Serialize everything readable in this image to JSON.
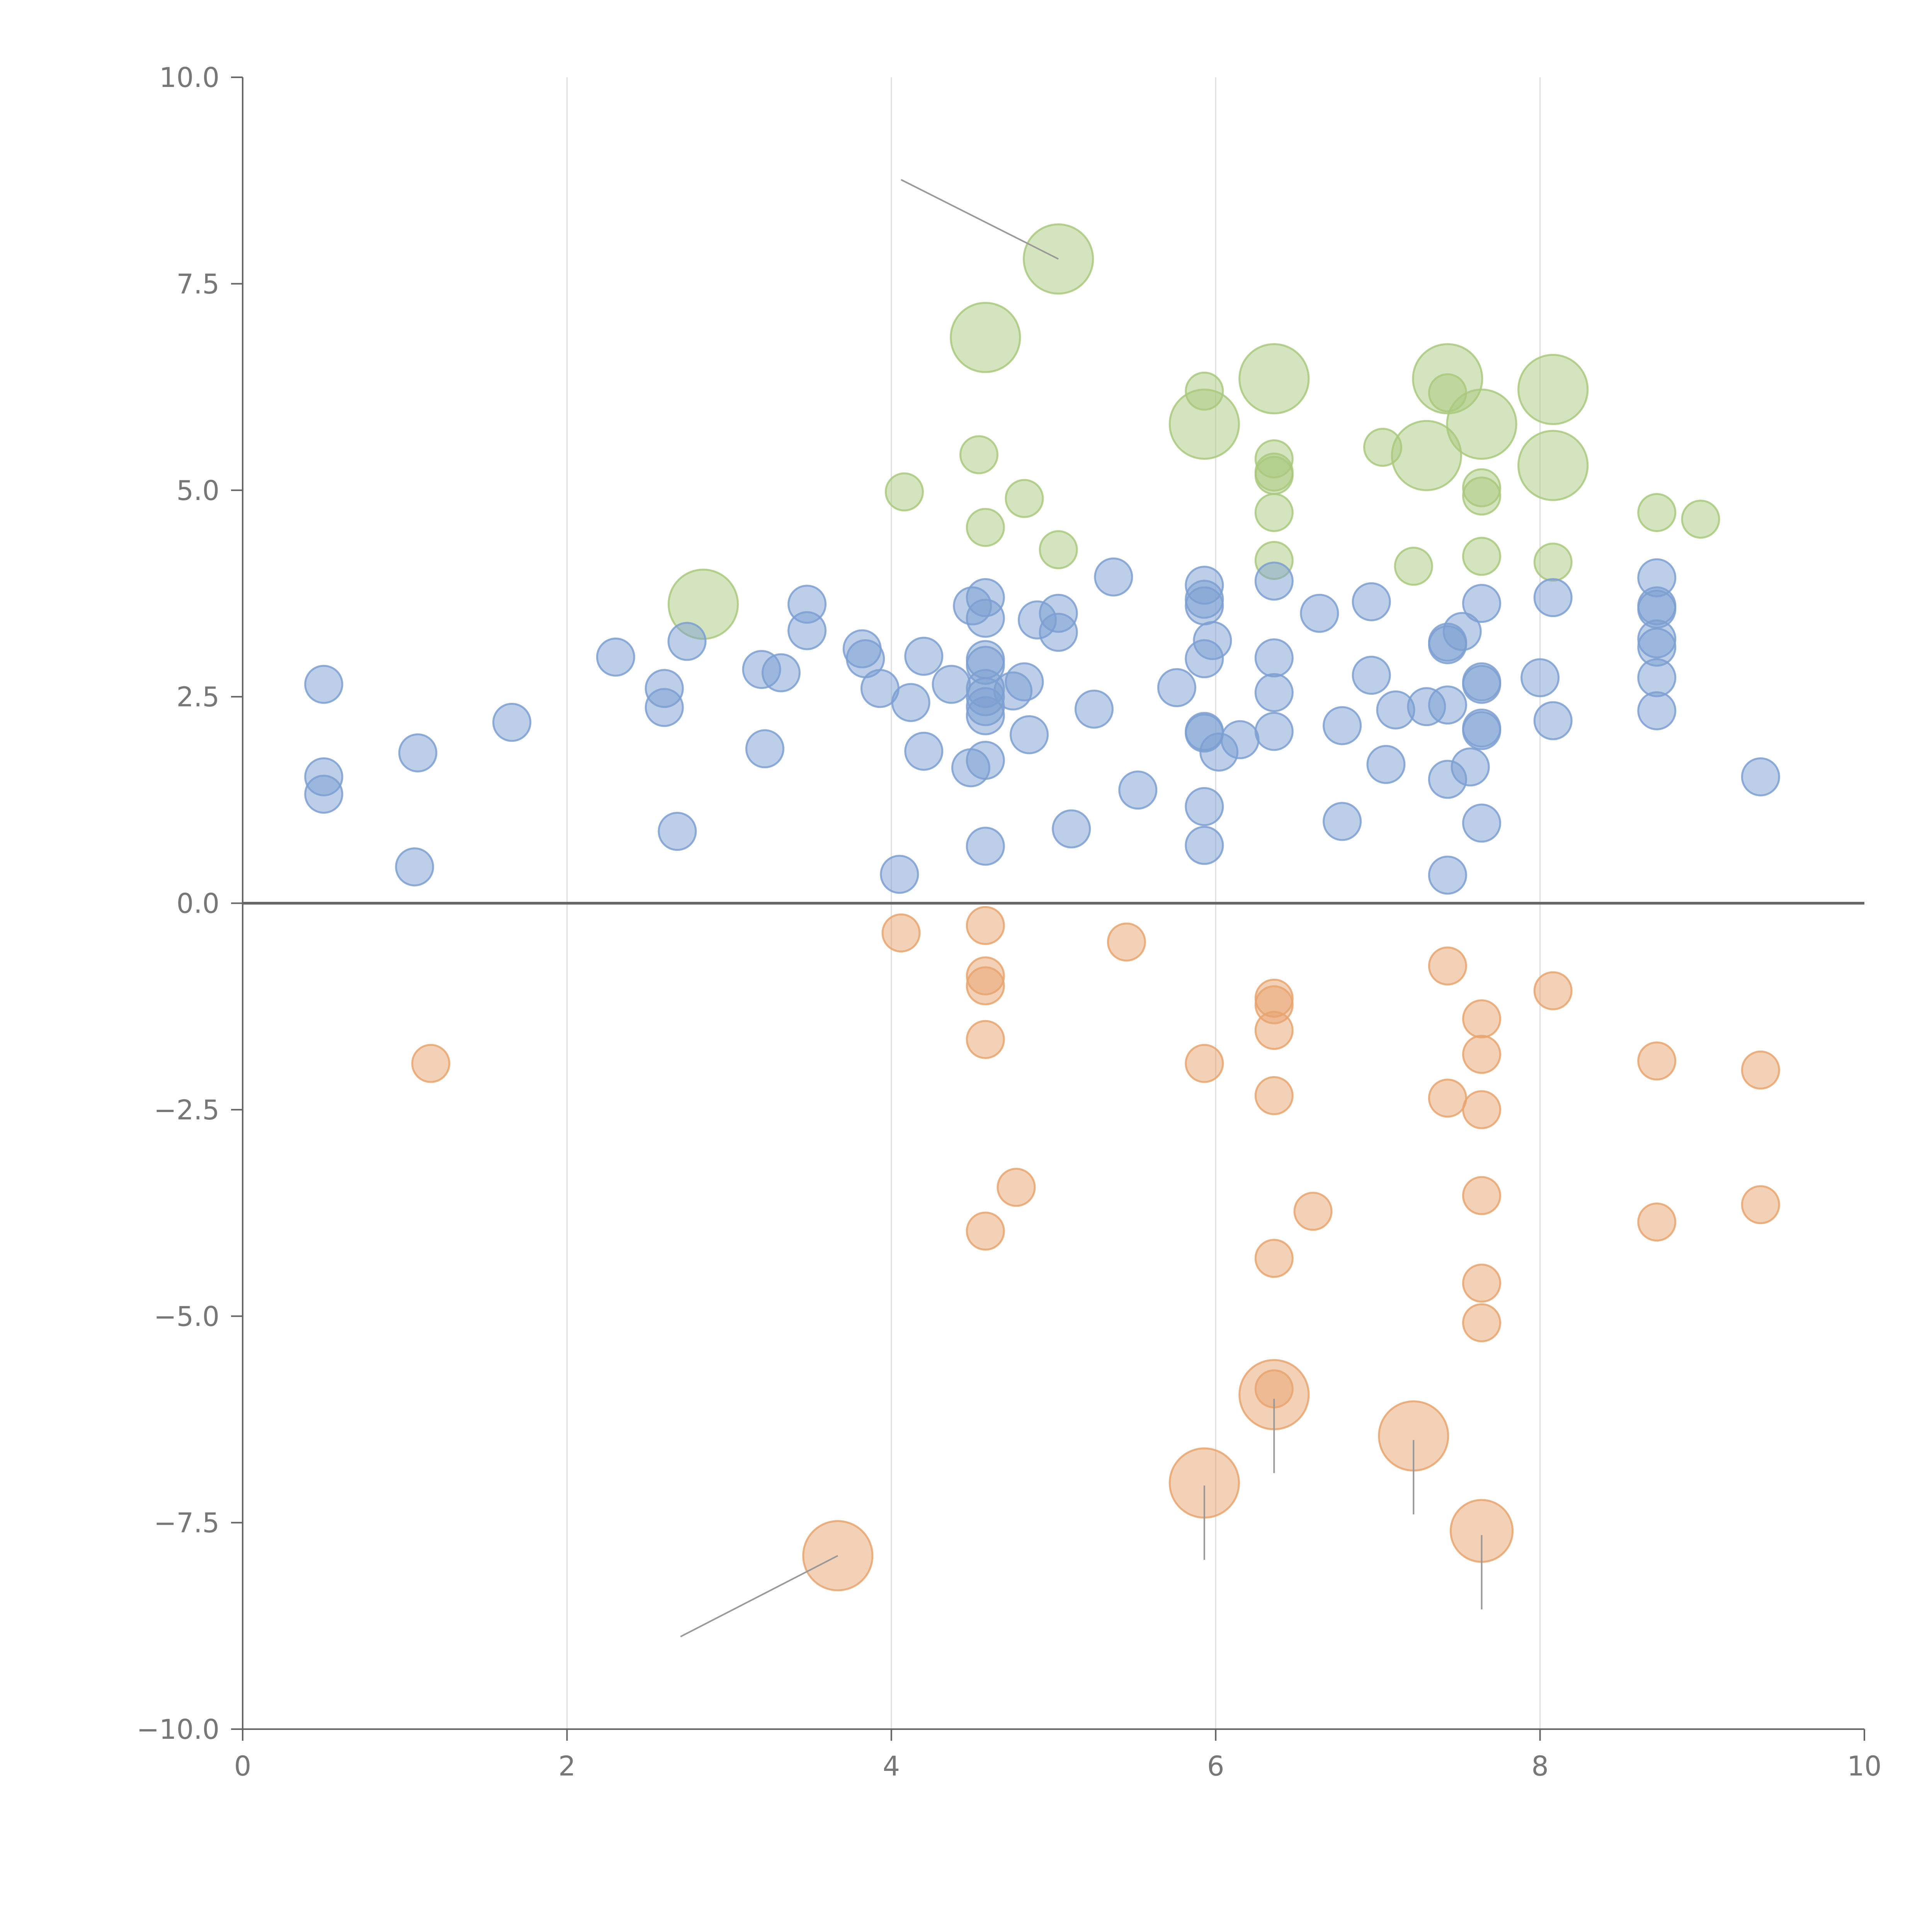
{
  "chart_data": {
    "type": "scatter",
    "title": "",
    "xlabel": "",
    "ylabel": "",
    "xlim": [
      0,
      10
    ],
    "ylim": [
      -10,
      10
    ],
    "x_ticks": [
      "0",
      "2",
      "4",
      "6",
      "8",
      "10"
    ],
    "y_ticks": [
      "10.0",
      "7.5",
      "5.0",
      "2.5",
      "0.0",
      "−2.5",
      "−5.0",
      "−7.5",
      "−10.0"
    ],
    "x_tick_values": [
      0,
      2,
      4,
      6,
      8,
      10
    ],
    "y_tick_values": [
      10,
      7.5,
      5,
      2.5,
      0,
      -2.5,
      -5,
      -7.5,
      -10
    ],
    "grid": "vertical",
    "zero_line": 0,
    "colors": {
      "green": "#a9c97e",
      "blue": "#7c9fd1",
      "orange": "#e8a46f",
      "axis": "#666666",
      "grid": "#dddddd",
      "connector": "#999999"
    },
    "series": [
      {
        "name": "green",
        "color": "#a9c97e",
        "points": [
          {
            "x": 5.03,
            "y": 7.8,
            "size": 2
          },
          {
            "x": 4.58,
            "y": 6.85,
            "size": 2
          },
          {
            "x": 6.36,
            "y": 6.35,
            "size": 2
          },
          {
            "x": 7.43,
            "y": 6.35,
            "size": 2
          },
          {
            "x": 8.08,
            "y": 6.22,
            "size": 2
          },
          {
            "x": 5.93,
            "y": 5.8,
            "size": 2
          },
          {
            "x": 7.64,
            "y": 5.8,
            "size": 2
          },
          {
            "x": 7.3,
            "y": 5.42,
            "size": 2
          },
          {
            "x": 8.08,
            "y": 5.3,
            "size": 2
          },
          {
            "x": 2.84,
            "y": 3.62,
            "size": 2
          },
          {
            "x": 5.93,
            "y": 6.2,
            "size": 1
          },
          {
            "x": 7.43,
            "y": 6.18,
            "size": 1
          },
          {
            "x": 4.54,
            "y": 5.43,
            "size": 1
          },
          {
            "x": 7.03,
            "y": 5.52,
            "size": 1
          },
          {
            "x": 6.36,
            "y": 5.38,
            "size": 1
          },
          {
            "x": 6.36,
            "y": 5.22,
            "size": 1
          },
          {
            "x": 6.36,
            "y": 5.18,
            "size": 1
          },
          {
            "x": 4.08,
            "y": 4.98,
            "size": 1
          },
          {
            "x": 7.64,
            "y": 5.03,
            "size": 1
          },
          {
            "x": 7.64,
            "y": 4.93,
            "size": 1
          },
          {
            "x": 4.82,
            "y": 4.9,
            "size": 1
          },
          {
            "x": 6.36,
            "y": 4.73,
            "size": 1
          },
          {
            "x": 8.72,
            "y": 4.73,
            "size": 1
          },
          {
            "x": 8.99,
            "y": 4.65,
            "size": 1
          },
          {
            "x": 4.58,
            "y": 4.55,
            "size": 1
          },
          {
            "x": 5.03,
            "y": 4.28,
            "size": 1
          },
          {
            "x": 6.36,
            "y": 4.15,
            "size": 1
          },
          {
            "x": 7.64,
            "y": 4.2,
            "size": 1
          },
          {
            "x": 8.08,
            "y": 4.13,
            "size": 1
          },
          {
            "x": 7.22,
            "y": 4.08,
            "size": 1
          }
        ]
      },
      {
        "name": "blue",
        "color": "#7c9fd1",
        "points": [
          {
            "x": 0.5,
            "y": 2.65,
            "size": 1
          },
          {
            "x": 0.5,
            "y": 1.53,
            "size": 1
          },
          {
            "x": 0.5,
            "y": 1.32,
            "size": 1
          },
          {
            "x": 1.08,
            "y": 1.82,
            "size": 1
          },
          {
            "x": 1.06,
            "y": 0.44,
            "size": 1
          },
          {
            "x": 1.66,
            "y": 2.19,
            "size": 1
          },
          {
            "x": 2.3,
            "y": 2.98,
            "size": 1
          },
          {
            "x": 2.6,
            "y": 2.6,
            "size": 1
          },
          {
            "x": 2.6,
            "y": 2.37,
            "size": 1
          },
          {
            "x": 2.74,
            "y": 3.17,
            "size": 1
          },
          {
            "x": 2.68,
            "y": 0.87,
            "size": 1
          },
          {
            "x": 3.2,
            "y": 2.83,
            "size": 1
          },
          {
            "x": 3.32,
            "y": 2.79,
            "size": 1
          },
          {
            "x": 3.22,
            "y": 1.87,
            "size": 1
          },
          {
            "x": 3.48,
            "y": 3.62,
            "size": 1
          },
          {
            "x": 3.48,
            "y": 3.3,
            "size": 1
          },
          {
            "x": 3.82,
            "y": 3.08,
            "size": 1
          },
          {
            "x": 3.84,
            "y": 2.96,
            "size": 1
          },
          {
            "x": 3.93,
            "y": 2.6,
            "size": 1
          },
          {
            "x": 4.12,
            "y": 2.43,
            "size": 1
          },
          {
            "x": 4.2,
            "y": 2.99,
            "size": 1
          },
          {
            "x": 4.2,
            "y": 1.84,
            "size": 1
          },
          {
            "x": 4.05,
            "y": 0.35,
            "size": 1
          },
          {
            "x": 4.37,
            "y": 2.65,
            "size": 1
          },
          {
            "x": 4.5,
            "y": 3.6,
            "size": 1
          },
          {
            "x": 4.58,
            "y": 3.7,
            "size": 1
          },
          {
            "x": 4.58,
            "y": 3.45,
            "size": 1
          },
          {
            "x": 4.58,
            "y": 2.95,
            "size": 1
          },
          {
            "x": 4.58,
            "y": 2.88,
            "size": 1
          },
          {
            "x": 4.58,
            "y": 2.6,
            "size": 1
          },
          {
            "x": 4.58,
            "y": 2.5,
            "size": 1
          },
          {
            "x": 4.58,
            "y": 2.38,
            "size": 1
          },
          {
            "x": 4.58,
            "y": 2.27,
            "size": 1
          },
          {
            "x": 4.58,
            "y": 1.73,
            "size": 1
          },
          {
            "x": 4.49,
            "y": 1.64,
            "size": 1
          },
          {
            "x": 4.58,
            "y": 0.69,
            "size": 1
          },
          {
            "x": 4.75,
            "y": 2.57,
            "size": 1
          },
          {
            "x": 4.82,
            "y": 2.68,
            "size": 1
          },
          {
            "x": 4.85,
            "y": 2.04,
            "size": 1
          },
          {
            "x": 4.9,
            "y": 3.43,
            "size": 1
          },
          {
            "x": 5.03,
            "y": 3.51,
            "size": 1
          },
          {
            "x": 5.03,
            "y": 3.28,
            "size": 1
          },
          {
            "x": 5.11,
            "y": 0.9,
            "size": 1
          },
          {
            "x": 5.25,
            "y": 2.35,
            "size": 1
          },
          {
            "x": 5.37,
            "y": 3.95,
            "size": 1
          },
          {
            "x": 5.52,
            "y": 1.37,
            "size": 1
          },
          {
            "x": 5.76,
            "y": 2.61,
            "size": 1
          },
          {
            "x": 5.93,
            "y": 3.85,
            "size": 1
          },
          {
            "x": 5.93,
            "y": 3.68,
            "size": 1
          },
          {
            "x": 5.93,
            "y": 3.6,
            "size": 1
          },
          {
            "x": 5.93,
            "y": 2.96,
            "size": 1
          },
          {
            "x": 5.93,
            "y": 2.08,
            "size": 1
          },
          {
            "x": 5.93,
            "y": 2.06,
            "size": 1
          },
          {
            "x": 5.93,
            "y": 1.17,
            "size": 1
          },
          {
            "x": 5.93,
            "y": 0.7,
            "size": 1
          },
          {
            "x": 5.98,
            "y": 3.18,
            "size": 1
          },
          {
            "x": 6.02,
            "y": 1.83,
            "size": 1
          },
          {
            "x": 6.15,
            "y": 1.98,
            "size": 1
          },
          {
            "x": 6.36,
            "y": 3.9,
            "size": 1
          },
          {
            "x": 6.36,
            "y": 2.97,
            "size": 1
          },
          {
            "x": 6.36,
            "y": 2.55,
            "size": 1
          },
          {
            "x": 6.36,
            "y": 2.08,
            "size": 1
          },
          {
            "x": 6.64,
            "y": 3.51,
            "size": 1
          },
          {
            "x": 6.78,
            "y": 2.15,
            "size": 1
          },
          {
            "x": 6.78,
            "y": 0.99,
            "size": 1
          },
          {
            "x": 6.96,
            "y": 3.65,
            "size": 1
          },
          {
            "x": 6.96,
            "y": 2.76,
            "size": 1
          },
          {
            "x": 7.05,
            "y": 1.68,
            "size": 1
          },
          {
            "x": 7.11,
            "y": 2.34,
            "size": 1
          },
          {
            "x": 7.3,
            "y": 2.38,
            "size": 1
          },
          {
            "x": 7.43,
            "y": 3.16,
            "size": 1
          },
          {
            "x": 7.43,
            "y": 3.13,
            "size": 1
          },
          {
            "x": 7.43,
            "y": 2.4,
            "size": 1
          },
          {
            "x": 7.43,
            "y": 1.5,
            "size": 1
          },
          {
            "x": 7.43,
            "y": 0.34,
            "size": 1
          },
          {
            "x": 7.52,
            "y": 3.29,
            "size": 1
          },
          {
            "x": 7.57,
            "y": 1.65,
            "size": 1
          },
          {
            "x": 7.64,
            "y": 3.63,
            "size": 1
          },
          {
            "x": 7.64,
            "y": 2.68,
            "size": 1
          },
          {
            "x": 7.64,
            "y": 2.65,
            "size": 1
          },
          {
            "x": 7.64,
            "y": 2.12,
            "size": 1
          },
          {
            "x": 7.64,
            "y": 2.09,
            "size": 1
          },
          {
            "x": 7.64,
            "y": 0.97,
            "size": 1
          },
          {
            "x": 8.0,
            "y": 2.73,
            "size": 1
          },
          {
            "x": 8.08,
            "y": 3.7,
            "size": 1
          },
          {
            "x": 8.08,
            "y": 2.21,
            "size": 1
          },
          {
            "x": 8.72,
            "y": 3.94,
            "size": 1
          },
          {
            "x": 8.72,
            "y": 3.6,
            "size": 1
          },
          {
            "x": 8.72,
            "y": 3.56,
            "size": 1
          },
          {
            "x": 8.72,
            "y": 3.2,
            "size": 1
          },
          {
            "x": 8.72,
            "y": 3.1,
            "size": 1
          },
          {
            "x": 8.72,
            "y": 2.73,
            "size": 1
          },
          {
            "x": 8.72,
            "y": 2.33,
            "size": 1
          },
          {
            "x": 9.36,
            "y": 1.53,
            "size": 1
          }
        ]
      },
      {
        "name": "orange",
        "color": "#e8a46f",
        "points": [
          {
            "x": 3.67,
            "y": -7.9,
            "size": 2
          },
          {
            "x": 5.93,
            "y": -7.02,
            "size": 2
          },
          {
            "x": 6.36,
            "y": -5.95,
            "size": 2
          },
          {
            "x": 7.22,
            "y": -6.45,
            "size": 2
          },
          {
            "x": 7.64,
            "y": -7.6,
            "size": 1.6
          },
          {
            "x": 1.16,
            "y": -1.94,
            "size": 1
          },
          {
            "x": 4.06,
            "y": -0.36,
            "size": 1
          },
          {
            "x": 4.58,
            "y": -0.27,
            "size": 1
          },
          {
            "x": 4.58,
            "y": -0.88,
            "size": 1
          },
          {
            "x": 4.58,
            "y": -1.0,
            "size": 1
          },
          {
            "x": 4.58,
            "y": -1.65,
            "size": 1
          },
          {
            "x": 4.58,
            "y": -3.97,
            "size": 1
          },
          {
            "x": 4.77,
            "y": -3.44,
            "size": 1
          },
          {
            "x": 5.45,
            "y": -0.47,
            "size": 1
          },
          {
            "x": 5.93,
            "y": -1.94,
            "size": 1
          },
          {
            "x": 6.36,
            "y": -1.15,
            "size": 1
          },
          {
            "x": 6.36,
            "y": -1.23,
            "size": 1
          },
          {
            "x": 6.36,
            "y": -1.54,
            "size": 1
          },
          {
            "x": 6.36,
            "y": -2.33,
            "size": 1
          },
          {
            "x": 6.36,
            "y": -4.3,
            "size": 1
          },
          {
            "x": 6.36,
            "y": -5.88,
            "size": 1
          },
          {
            "x": 6.6,
            "y": -3.73,
            "size": 1
          },
          {
            "x": 7.43,
            "y": -0.76,
            "size": 1
          },
          {
            "x": 7.43,
            "y": -2.36,
            "size": 1
          },
          {
            "x": 7.64,
            "y": -1.4,
            "size": 1
          },
          {
            "x": 7.64,
            "y": -1.83,
            "size": 1
          },
          {
            "x": 7.64,
            "y": -2.5,
            "size": 1
          },
          {
            "x": 7.64,
            "y": -3.54,
            "size": 1
          },
          {
            "x": 7.64,
            "y": -4.6,
            "size": 1
          },
          {
            "x": 7.64,
            "y": -5.08,
            "size": 1
          },
          {
            "x": 8.08,
            "y": -1.06,
            "size": 1
          },
          {
            "x": 8.72,
            "y": -1.91,
            "size": 1
          },
          {
            "x": 8.72,
            "y": -3.86,
            "size": 1
          },
          {
            "x": 9.36,
            "y": -2.02,
            "size": 1
          },
          {
            "x": 9.36,
            "y": -3.65,
            "size": 1
          }
        ]
      }
    ],
    "connectors": [
      {
        "x1": 4.06,
        "y1": 8.76,
        "x2": 5.03,
        "y2": 7.8
      },
      {
        "x1": 3.67,
        "y1": -7.9,
        "x2": 2.7,
        "y2": -8.88
      },
      {
        "x1": 5.93,
        "y1": -7.05,
        "x2": 5.93,
        "y2": -7.95
      },
      {
        "x1": 6.36,
        "y1": -6.0,
        "x2": 6.36,
        "y2": -6.9
      },
      {
        "x1": 7.22,
        "y1": -6.5,
        "x2": 7.22,
        "y2": -7.4
      },
      {
        "x1": 7.64,
        "y1": -7.65,
        "x2": 7.64,
        "y2": -8.55
      }
    ]
  }
}
